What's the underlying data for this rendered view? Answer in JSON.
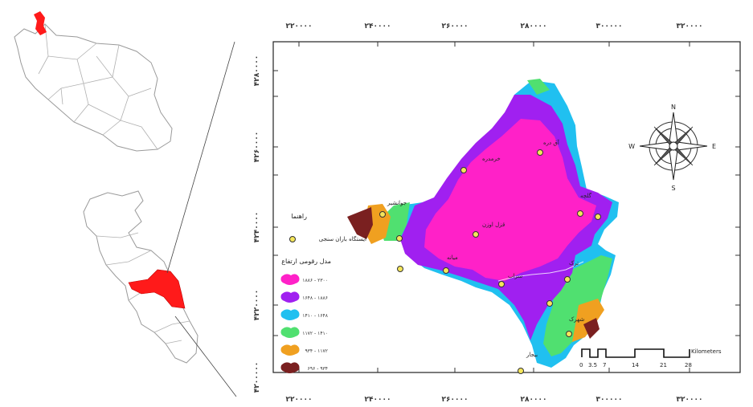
{
  "map_frame": {
    "x_ticks": [
      "۲۲۰۰۰۰",
      "۲۴۰۰۰۰",
      "۲۶۰۰۰۰",
      "۲۸۰۰۰۰",
      "۳۰۰۰۰۰",
      "۳۲۰۰۰۰"
    ],
    "y_ticks": [
      "۴۲۸۰۰۰۰",
      "۴۲۶۰۰۰۰",
      "۴۲۴۰۰۰۰",
      "۴۲۲۰۰۰۰",
      "۴۲۰۰۰۰۰"
    ]
  },
  "legend": {
    "heading": "راهنما",
    "station_label": "ایستگاه باران سنجی",
    "elevation_title": "مدل رقومی ارتفاع",
    "classes": [
      {
        "label": "۱۸۸۶ - ۲۳۰۰",
        "color": "#ff21c8"
      },
      {
        "label": "۱۶۴۸ - ۱۸۸۶",
        "color": "#a020f0"
      },
      {
        "label": "۱۴۱۰ - ۱۶۴۸",
        "color": "#20c0f0"
      },
      {
        "label": "۱۱۷۲ - ۱۴۱۰",
        "color": "#50e070"
      },
      {
        "label": "۹۳۴ - ۱۱۷۲",
        "color": "#f0a020"
      },
      {
        "label": "۶۹۶ - ۹۳۴",
        "color": "#7a2020"
      }
    ]
  },
  "scale_bar": {
    "unit": "Kilometers",
    "labels": [
      "0",
      "3.5",
      "7",
      "14",
      "21",
      "28"
    ]
  },
  "compass": {
    "n": "N",
    "s": "S",
    "e": "E",
    "w": "W"
  },
  "station_names": [
    "خرمدره",
    "آق دره",
    "گلچه",
    "قزل اوزن",
    "جوانشیر",
    "میانه",
    "سراب",
    "ترک",
    "شهرک",
    "بیجار"
  ],
  "inset": {
    "highlight_color": "#ff1a1a"
  }
}
